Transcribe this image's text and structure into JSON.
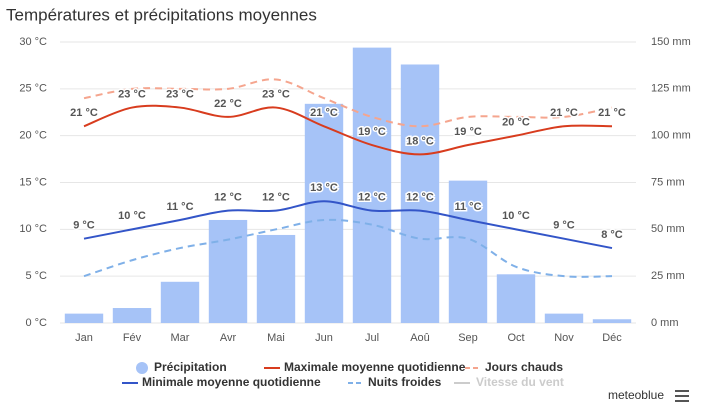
{
  "chart_data": {
    "type": "bar_line",
    "title": "Températures et précipitations moyennes",
    "categories": [
      "Jan",
      "Fév",
      "Mar",
      "Avr",
      "Mai",
      "Jun",
      "Jul",
      "Aoû",
      "Sep",
      "Oct",
      "Nov",
      "Déc"
    ],
    "ylim": [
      0,
      30
    ],
    "yticks": [
      {
        "value": 0,
        "label": "0 °C"
      },
      {
        "value": 5,
        "label": "5 °C"
      },
      {
        "value": 10,
        "label": "10 °C"
      },
      {
        "value": 15,
        "label": "15 °C"
      },
      {
        "value": 20,
        "label": "20 °C"
      },
      {
        "value": 25,
        "label": "25 °C"
      },
      {
        "value": 30,
        "label": "30 °C"
      }
    ],
    "y2lim": [
      0,
      150
    ],
    "y2ticks": [
      {
        "value": 0,
        "label": "0 mm"
      },
      {
        "value": 25,
        "label": "25 mm"
      },
      {
        "value": 50,
        "label": "50 mm"
      },
      {
        "value": 75,
        "label": "75 mm"
      },
      {
        "value": 100,
        "label": "100 mm"
      },
      {
        "value": 125,
        "label": "125 mm"
      },
      {
        "value": 150,
        "label": "150 mm"
      }
    ],
    "grid": true,
    "legend": "bottom",
    "series": [
      {
        "name": "Précipitation",
        "type": "bar",
        "axis": "y2",
        "color": "#a6c3f7",
        "values": [
          5,
          8,
          22,
          55,
          47,
          117,
          147,
          138,
          76,
          26,
          5,
          2
        ]
      },
      {
        "name": "Maximale moyenne quotidienne",
        "type": "line",
        "color": "#d83c1e",
        "values": [
          21,
          23,
          23,
          22,
          23,
          21,
          19,
          18,
          19,
          20,
          21,
          21
        ],
        "value_labels": [
          "21 °C",
          "23 °C",
          "23 °C",
          "22 °C",
          "23 °C",
          "21 °C",
          "19 °C",
          "18 °C",
          "19 °C",
          "20 °C",
          "21 °C",
          "21 °C"
        ],
        "label_color": "#8a2712"
      },
      {
        "name": "Jours chauds",
        "type": "line",
        "dashed": true,
        "color": "#f5a58e",
        "values": [
          24,
          25,
          25,
          25,
          26,
          24,
          22,
          21,
          22,
          22,
          22,
          23
        ]
      },
      {
        "name": "Minimale moyenne quotidienne",
        "type": "line",
        "color": "#3355c8",
        "values": [
          9,
          10,
          11,
          12,
          12,
          13,
          12,
          12,
          11,
          10,
          9,
          8
        ],
        "value_labels": [
          "9 °C",
          "10 °C",
          "11 °C",
          "12 °C",
          "12 °C",
          "13 °C",
          "12 °C",
          "12 °C",
          "11 °C",
          "10 °C",
          "9 °C",
          "8 °C"
        ],
        "label_color": "#22348a"
      },
      {
        "name": "Nuits froides",
        "type": "line",
        "dashed": true,
        "color": "#7fb0e8",
        "values": [
          5,
          6.7,
          8,
          8.9,
          10,
          11,
          10.5,
          9,
          9,
          6,
          5,
          5
        ]
      }
    ],
    "inactive_legend": "Vitesse du vent",
    "credit": "meteoblue"
  }
}
